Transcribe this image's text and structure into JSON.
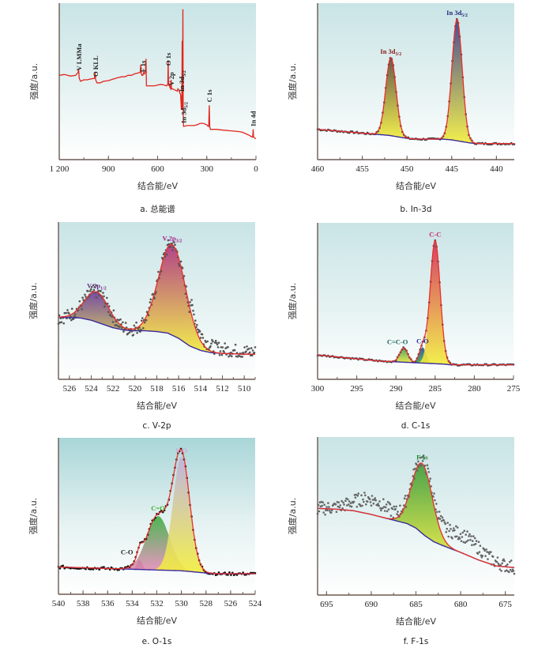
{
  "figure": {
    "ylabel": "强度/a.u.",
    "xlabel": "结合能/eV"
  },
  "chart_data": [
    {
      "id": "a",
      "type": "line",
      "caption": "a.  总能谱",
      "title": "总能谱",
      "xlabel": "结合能/eV",
      "ylabel": "强度/a.u.",
      "xlim": [
        1200,
        0
      ],
      "ylim": [
        0,
        100
      ],
      "xticks": [
        1200,
        900,
        600,
        300,
        0
      ],
      "xtick_labels": [
        "1 200",
        "900",
        "600",
        "300",
        "0"
      ],
      "minor_step": 150,
      "background": [
        "#c9e4e6",
        "#ffffff"
      ],
      "line_color": "#e0261e",
      "series": [
        {
          "name": "survey",
          "x": [
            1200,
            1170,
            1150,
            1130,
            1100,
            1085,
            1082,
            1078,
            1070,
            1050,
            1030,
            1010,
            985,
            982,
            978,
            970,
            950,
            930,
            900,
            870,
            840,
            820,
            800,
            780,
            760,
            740,
            720,
            706,
            703,
            700,
            695,
            690,
            685,
            680,
            674,
            671,
            668,
            660,
            640,
            620,
            600,
            580,
            560,
            545,
            538,
            536,
            533,
            530,
            525,
            520,
            518,
            515,
            510,
            500,
            490,
            480,
            476,
            470,
            460,
            455,
            452,
            450,
            448,
            446,
            444,
            442,
            440,
            420,
            400,
            380,
            360,
            340,
            320,
            300,
            292,
            288,
            285,
            282,
            278,
            260,
            240,
            200,
            150,
            100,
            80,
            60,
            40,
            26,
            20,
            17,
            15,
            10,
            5,
            0
          ],
          "y": [
            53,
            53.5,
            53,
            52.5,
            53,
            55,
            57,
            51,
            49,
            50,
            50,
            50.5,
            51,
            55,
            50,
            48,
            48,
            49,
            49.5,
            50.5,
            51.5,
            52,
            52,
            53,
            53,
            54,
            54.5,
            55,
            60,
            54,
            53,
            53,
            55,
            54,
            55,
            64,
            46,
            46,
            46,
            46,
            46.5,
            47,
            46.5,
            46,
            47,
            63,
            46,
            47,
            45,
            44,
            50,
            44,
            44,
            43.5,
            43,
            42.5,
            44,
            43,
            40,
            30,
            40,
            76,
            30,
            97,
            30,
            19,
            19,
            19.5,
            19.5,
            19.5,
            20,
            21,
            21,
            20,
            19,
            19,
            33,
            19,
            17,
            17,
            17,
            16.5,
            16,
            15.5,
            15,
            14,
            13,
            12,
            12,
            17,
            12,
            11.5,
            11,
            11
          ]
        }
      ],
      "annotations": [
        {
          "text": "V LMMa",
          "x": 1080,
          "color": "#222"
        },
        {
          "text": "O KLL",
          "x": 978,
          "color": "#222"
        },
        {
          "text": "F 1s",
          "x": 690,
          "color": "#222"
        },
        {
          "text": "O 1s",
          "x": 535,
          "color": "#222"
        },
        {
          "text": "V 2p",
          "x": 515,
          "color": "#222"
        },
        {
          "text": "In 3d3/2",
          "x": 452,
          "color": "#222"
        },
        {
          "text": "In 3d5/2",
          "x": 440,
          "color": "#222"
        },
        {
          "text": "C 1s",
          "x": 285,
          "color": "#222"
        },
        {
          "text": "In 4d",
          "x": 17,
          "color": "#222"
        }
      ]
    },
    {
      "id": "b",
      "type": "line",
      "caption": "b.  In-3d",
      "title": "In-3d",
      "xlabel": "结合能/eV",
      "ylabel": "强度/a.u.",
      "xlim": [
        460,
        438
      ],
      "ylim": [
        0,
        100
      ],
      "xticks": [
        460,
        455,
        450,
        445,
        440
      ],
      "xtick_labels": [
        "460",
        "455",
        "450",
        "445",
        "440"
      ],
      "minor_step": 2.5,
      "background": [
        "#c9e4e6",
        "#ffffff"
      ],
      "baseline": {
        "x": [
          460,
          456,
          454,
          453,
          452,
          451,
          450,
          449,
          447,
          446,
          445,
          444,
          443,
          442,
          440,
          438
        ],
        "y": [
          17,
          15,
          14,
          13.5,
          13,
          12,
          11,
          10.5,
          10.5,
          10.5,
          10,
          9,
          8,
          7.5,
          7.5,
          7.5
        ]
      },
      "components": [
        {
          "name": "In 3d3/2",
          "center": 451.8,
          "height": 52,
          "fwhm": 1.35,
          "label": "In 3d3/2",
          "label_color": "#8b1a1a",
          "fill_top": "#5a4a3a",
          "fill_bottom": "#f2ee3a"
        },
        {
          "name": "In 3d5/2",
          "center": 444.4,
          "height": 81,
          "fwhm": 1.35,
          "label": "In 3d5/2",
          "label_color": "#2a2a7a",
          "fill_top": "#3a3a8a",
          "fill_bottom": "#f2ee3a"
        }
      ],
      "envelope_color": "#e8302a",
      "baseline_color": "#3a2a9a",
      "points_color": "#444444",
      "points_noise": 0.6
    },
    {
      "id": "c",
      "type": "line",
      "caption": "c.  V-2p",
      "title": "V-2p",
      "xlabel": "结合能/eV",
      "ylabel": "强度/a.u.",
      "xlim": [
        527,
        509
      ],
      "ylim": [
        0,
        100
      ],
      "xticks": [
        526,
        524,
        522,
        520,
        518,
        516,
        514,
        512,
        510
      ],
      "xtick_labels": [
        "526",
        "524",
        "522",
        "520",
        "518",
        "516",
        "514",
        "512",
        "510"
      ],
      "minor_step": 1,
      "background": [
        "#c9e4e6",
        "#ffffff"
      ],
      "baseline": {
        "x": [
          527,
          525,
          524,
          523,
          522,
          521,
          520,
          519,
          518,
          517,
          516,
          515,
          514,
          513,
          512,
          510,
          509
        ],
        "y": [
          38,
          37.5,
          36,
          33.5,
          31,
          29.5,
          29,
          29,
          28.5,
          27.5,
          24,
          19,
          16,
          14.5,
          14,
          13.5,
          13.5
        ]
      },
      "components": [
        {
          "name": "V 2p1/2",
          "center": 523.5,
          "height": 20,
          "fwhm": 2.6,
          "label": "V 2p1/2",
          "label_color": "#6a2a8a",
          "fill_top": "#6a3a9a",
          "fill_bottom": "#f2ee3a"
        },
        {
          "name": "V 2p3/2",
          "center": 516.6,
          "height": 60,
          "fwhm": 2.9,
          "label": "V 2p3/2",
          "label_color": "#a0208a",
          "fill_top": "#b0307e",
          "fill_bottom": "#f2ee3a"
        }
      ],
      "envelope_color": "#e8302a",
      "baseline_color": "#3a2a9a",
      "points_color": "#555555",
      "points_noise": 4.5,
      "points_extra_tail": true
    },
    {
      "id": "d",
      "type": "line",
      "caption": "d.  C-1s",
      "title": "C-1s",
      "xlabel": "结合能/eV",
      "ylabel": "强度/a.u.",
      "xlim": [
        300,
        275
      ],
      "ylim": [
        0,
        100
      ],
      "xticks": [
        300,
        295,
        290,
        285,
        280,
        275
      ],
      "xtick_labels": [
        "300",
        "295",
        "290",
        "285",
        "280",
        "275"
      ],
      "minor_step": 2.5,
      "background": [
        "#c9e4e6",
        "#ffffff"
      ],
      "baseline": {
        "x": [
          300,
          295,
          292,
          290,
          288,
          286,
          284,
          283,
          280,
          275
        ],
        "y": [
          13,
          10.5,
          9,
          8.5,
          8,
          7.5,
          7,
          6.5,
          6.5,
          6.5
        ]
      },
      "components": [
        {
          "name": "C=C-O",
          "center": 289,
          "height": 9.5,
          "fwhm": 1.2,
          "label": "C=C-O",
          "label_color": "#1a6a5a",
          "fill_top": "#3a9a5a",
          "fill_bottom": "#f2ee3a"
        },
        {
          "name": "C-O",
          "center": 286.6,
          "height": 10.5,
          "fwhm": 1.0,
          "label": "C-O",
          "label_color": "#2a2a9a",
          "fill_top": "#2a4a9a",
          "fill_bottom": "#3ab04a"
        },
        {
          "name": "C-C",
          "center": 285,
          "height": 82,
          "fwhm": 1.5,
          "label": "C-C",
          "label_color": "#d0206a",
          "fill_top": "#d82a5a",
          "fill_bottom": "#f2ee3a"
        }
      ],
      "envelope_color": "#e8302a",
      "baseline_color": "#3a2a9a",
      "points_color": "#444444",
      "points_noise": 0.5
    },
    {
      "id": "e",
      "type": "line",
      "caption": "e.  O-1s",
      "title": "O-1s",
      "xlabel": "结合能/eV",
      "ylabel": "强度/a.u.",
      "xlim": [
        540,
        524
      ],
      "ylim": [
        0,
        100
      ],
      "xticks": [
        540,
        538,
        536,
        534,
        532,
        530,
        528,
        526,
        524
      ],
      "xtick_labels": [
        "540",
        "538",
        "536",
        "534",
        "532",
        "530",
        "528",
        "526",
        "524"
      ],
      "minor_step": 1,
      "background": [
        "#a9d6d8",
        "#ffffff"
      ],
      "baseline": {
        "x": [
          540,
          536,
          534,
          532,
          530,
          528,
          527,
          524
        ],
        "y": [
          15,
          14,
          13.5,
          13,
          12.5,
          11,
          10.5,
          10.5
        ]
      },
      "components": [
        {
          "name": "C-O",
          "center": 533.4,
          "height": 6.5,
          "fwhm": 0.5,
          "label": "C-O",
          "label_color": "#222222",
          "fill_top": "#a0206a",
          "fill_bottom": "#a0206a"
        },
        {
          "name": "C=O",
          "center": 531.9,
          "height": 36,
          "fwhm": 2.2,
          "label": "C=O",
          "label_color": "#3ab030",
          "fill_top": "#3ab040",
          "fill_bottom": "#f08ac0"
        },
        {
          "name": "V-O",
          "center": 530.0,
          "height": 76,
          "fwhm": 1.6,
          "label": "V-O",
          "label_color": "#d0a0d0",
          "fill_top": "#c0b0e0",
          "fill_bottom": "#f2ee3a"
        }
      ],
      "envelope_color": "#e8302a",
      "baseline_color": "#3a2a9a",
      "points_color": "#111111",
      "points_noise": 1.0
    },
    {
      "id": "f",
      "type": "line",
      "caption": "f.  F-1s",
      "title": "F-1s",
      "xlabel": "结合能/eV",
      "ylabel": "强度/a.u.",
      "xlim": [
        696,
        674
      ],
      "ylim": [
        0,
        100
      ],
      "xticks": [
        695,
        690,
        685,
        680,
        675
      ],
      "xtick_labels": [
        "695",
        "690",
        "685",
        "680",
        "675"
      ],
      "minor_step": 2.5,
      "background": [
        "#c9e4e6",
        "#ffffff"
      ],
      "baseline": {
        "x": [
          696,
          694,
          692,
          690,
          688,
          686,
          685,
          684,
          683,
          682,
          680,
          678,
          676,
          674
        ],
        "y": [
          54,
          53.5,
          52.5,
          50,
          47,
          44,
          41,
          36,
          32,
          29.5,
          25,
          20,
          16,
          15
        ]
      },
      "components": [
        {
          "name": "F 1s",
          "center": 684.3,
          "height": 46,
          "fwhm": 2.7,
          "label": "F 1s",
          "label_color": "#1a8a2a",
          "fill_top": "#3a9a3a",
          "fill_bottom": "#f2ee3a"
        }
      ],
      "envelope_color": "#e8302a",
      "baseline_color": "#3a2a9a",
      "points_color": "#666666",
      "points_noise": 4.5,
      "points_hump": true
    }
  ]
}
